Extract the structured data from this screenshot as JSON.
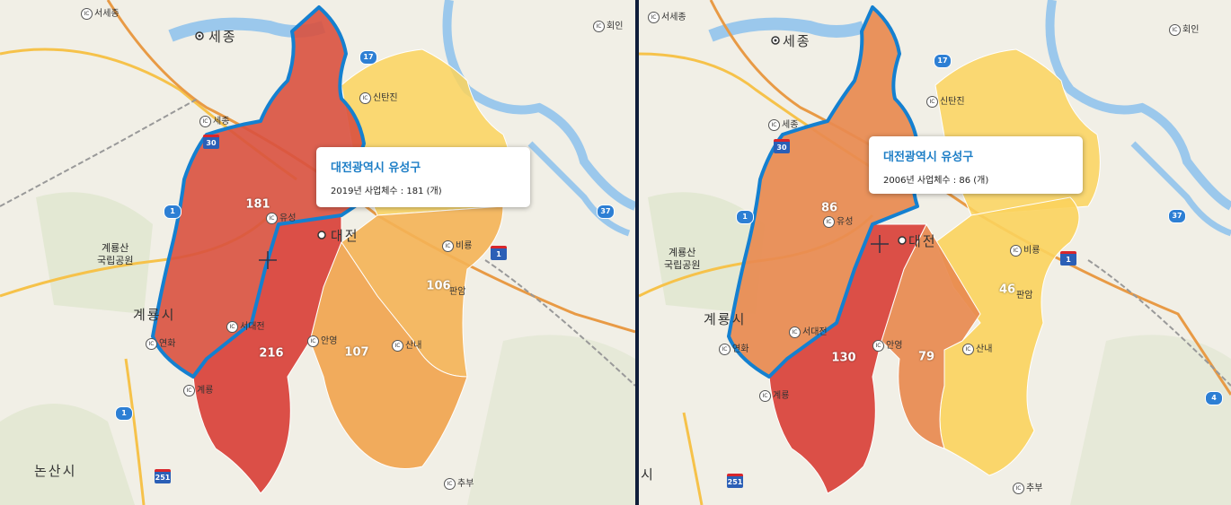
{
  "colors": {
    "high": "#d9413a",
    "mid_high": "#e4604a",
    "mid": "#f1a34d",
    "low": "#fbd35d",
    "outline": "#1480d0",
    "water": "#9bc8ec",
    "road": "#f6c24a"
  },
  "panels": [
    {
      "tooltip": {
        "title": "대전광역시 유성구",
        "detail": "2019년 사업체수 : 181 (개)"
      },
      "values": {
        "yuseong": "181",
        "seo": "216",
        "jung": "107",
        "dong": "106"
      },
      "places": {
        "sejong": "세종",
        "seosejong": "서세종",
        "sejong_ic": "세종",
        "hoein": "회인",
        "sintanjin": "신탄진",
        "yuseong": "유성",
        "daejeon": "대전",
        "biryong": "비룡",
        "panam": "판암",
        "seodaejeon": "서대전",
        "anyeong": "안영",
        "sannae": "산내",
        "yeonhwa": "연화",
        "gyeryong_ic": "계룡",
        "gyeryong_si": "계룡시",
        "gyeryongsan": "계룡산",
        "national_park": "국립공원",
        "nonsan": "논산시",
        "chubu": "추부"
      },
      "route_labels": [
        "17",
        "30",
        "1",
        "37",
        "1",
        "1",
        "251"
      ]
    },
    {
      "tooltip": {
        "title": "대전광역시 유성구",
        "detail": "2006년 사업체수 : 86 (개)"
      },
      "values": {
        "yuseong": "86",
        "seo": "130",
        "jung": "79",
        "dong": "46"
      },
      "places": {
        "sejong": "세종",
        "seosejong": "서세종",
        "sejong_ic": "세종",
        "hoein": "회인",
        "sintanjin": "신탄진",
        "yuseong": "유성",
        "daejeon": "대전",
        "biryong": "비룡",
        "panam": "판암",
        "seodaejeon": "서대전",
        "anyeong": "안영",
        "sannae": "산내",
        "yeonhwa": "연화",
        "gyeryong_ic": "계룡",
        "gyeryong_si": "계룡시",
        "gyeryongsan": "계룡산",
        "national_park": "국립공원",
        "nonsan": "시",
        "chubu": "추부"
      },
      "route_labels": [
        "17",
        "30",
        "1",
        "37",
        "1",
        "4",
        "251"
      ]
    }
  ]
}
